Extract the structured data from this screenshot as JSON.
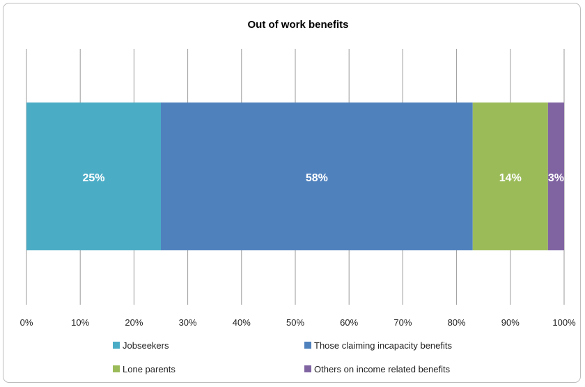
{
  "chart_data": {
    "type": "bar",
    "orientation": "horizontal",
    "stacked": true,
    "title": "Out of work benefits",
    "xlim": [
      0,
      100
    ],
    "x_ticks": [
      "0%",
      "10%",
      "20%",
      "30%",
      "40%",
      "50%",
      "60%",
      "70%",
      "80%",
      "90%",
      "100%"
    ],
    "grid": true,
    "legend_position": "bottom",
    "series": [
      {
        "name": "Jobseekers",
        "value": 25,
        "label": "25%",
        "color": "#4bacc6"
      },
      {
        "name": "Those claiming incapacity benefits",
        "value": 58,
        "label": "58%",
        "color": "#4f81bd"
      },
      {
        "name": "Lone parents",
        "value": 14,
        "label": "14%",
        "color": "#9bbb59"
      },
      {
        "name": "Others on income related benefits",
        "value": 3,
        "label": "3%",
        "color": "#8064a2"
      }
    ]
  }
}
